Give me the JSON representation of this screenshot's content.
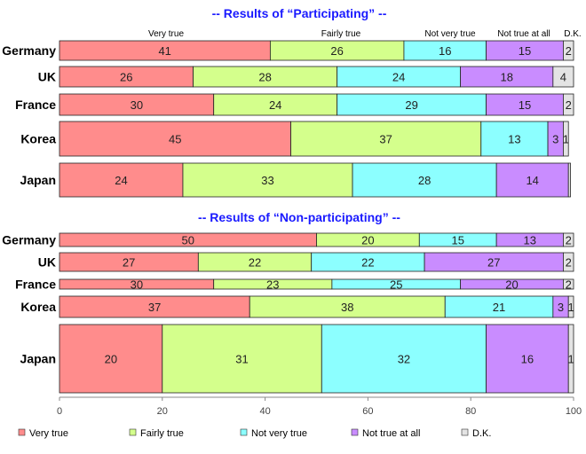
{
  "chart_data": {
    "type": "bar",
    "stacked": true,
    "orientation": "horizontal",
    "xlim": [
      0,
      100
    ],
    "xticks": [
      "0",
      "20",
      "40",
      "60",
      "80",
      "100"
    ],
    "categories_legend": [
      "Very true",
      "Fairly true",
      "Not very true",
      "Not true at all",
      "D.K."
    ],
    "column_labels": [
      "Very true",
      "Fairly true",
      "Not very true",
      "Not true at all",
      "D.K."
    ],
    "colors": [
      "#ff8c8c",
      "#d4ff8c",
      "#8cffff",
      "#c98cff",
      "#e4e4e4"
    ],
    "panels": [
      {
        "title": "-- Results of “Participating” --",
        "rows": [
          {
            "label": "Germany",
            "values": [
              41,
              26,
              16,
              15,
              2
            ],
            "labels": [
              "41",
              "26",
              "16",
              "15",
              "2"
            ]
          },
          {
            "label": "UK",
            "values": [
              26,
              28,
              24,
              18,
              4
            ],
            "labels": [
              "26",
              "28",
              "24",
              "18",
              "4"
            ]
          },
          {
            "label": "France",
            "values": [
              30,
              24,
              29,
              15,
              2
            ],
            "labels": [
              "30",
              "24",
              "29",
              "15",
              "2"
            ]
          },
          {
            "label": "Korea",
            "values": [
              45,
              37,
              13,
              3,
              1
            ],
            "labels": [
              "45",
              "37",
              "13",
              "3",
              "1"
            ]
          },
          {
            "label": "Japan",
            "values": [
              24,
              33,
              28,
              14,
              0.4
            ],
            "labels": [
              "24",
              "33",
              "28",
              "14",
              ""
            ]
          }
        ]
      },
      {
        "title": "-- Results of “Non-participating” --",
        "rows": [
          {
            "label": "Germany",
            "values": [
              50,
              20,
              15,
              13,
              2
            ],
            "labels": [
              "50",
              "20",
              "15",
              "13",
              "2"
            ]
          },
          {
            "label": "UK",
            "values": [
              27,
              22,
              22,
              27,
              2
            ],
            "labels": [
              "27",
              "22",
              "22",
              "27",
              "2"
            ]
          },
          {
            "label": "France",
            "values": [
              30,
              23,
              25,
              20,
              2
            ],
            "labels": [
              "30",
              "23",
              "25",
              "20",
              "2"
            ]
          },
          {
            "label": "Korea",
            "values": [
              37,
              38,
              21,
              3,
              1
            ],
            "labels": [
              "37",
              "38",
              "21",
              "3",
              "1"
            ]
          },
          {
            "label": "Japan",
            "values": [
              20,
              31,
              32,
              16,
              1
            ],
            "labels": [
              "20",
              "31",
              "32",
              "16",
              "1"
            ]
          }
        ]
      }
    ]
  }
}
